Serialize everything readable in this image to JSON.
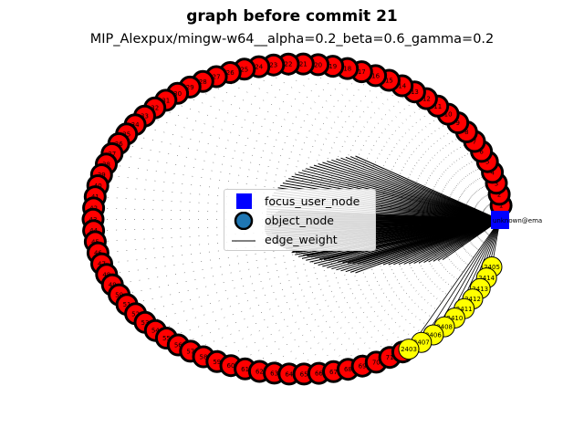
{
  "figure": {
    "title": "graph before commit 21",
    "subtitle": "MIP_Alexpux/mingw-w64__alpha=0.2_beta=0.6_gamma=0.2"
  },
  "legend": {
    "items": [
      {
        "label": "focus_user_node",
        "shape": "square",
        "color": "#0000ff"
      },
      {
        "label": "object_node",
        "shape": "circle",
        "color": "#1f77b4"
      },
      {
        "label": "edge_weight",
        "shape": "line",
        "color": "#000000"
      }
    ]
  },
  "chart_data": {
    "type": "network",
    "focus_node": {
      "label": "unknown@ema",
      "color": "#0000ff"
    },
    "red_nodes": {
      "color": "#ff0000",
      "labels": [
        "1",
        "2",
        "3",
        "4",
        "5",
        "6",
        "7",
        "8",
        "9",
        "10",
        "11",
        "12",
        "13",
        "14",
        "15",
        "16",
        "17",
        "18",
        "19",
        "20",
        "21",
        "22",
        "23",
        "24",
        "25",
        "26",
        "27",
        "28",
        "29",
        "30",
        "31",
        "32",
        "33",
        "34",
        "35",
        "36",
        "37",
        "38",
        "39",
        "40",
        "41",
        "42",
        "43",
        "44",
        "45",
        "46",
        "47",
        "48",
        "49",
        "50",
        "51",
        "52",
        "53",
        "54",
        "55",
        "56",
        "57",
        "58",
        "59",
        "60",
        "61",
        "62",
        "63",
        "64",
        "65",
        "66",
        "67",
        "68",
        "69",
        "70",
        "71",
        "72"
      ]
    },
    "yellow_nodes": {
      "color": "#ffff00",
      "labels": [
        "2405",
        "2414",
        "2413",
        "2412",
        "2411",
        "2410",
        "2408",
        "2406",
        "2407",
        "2403"
      ]
    }
  }
}
